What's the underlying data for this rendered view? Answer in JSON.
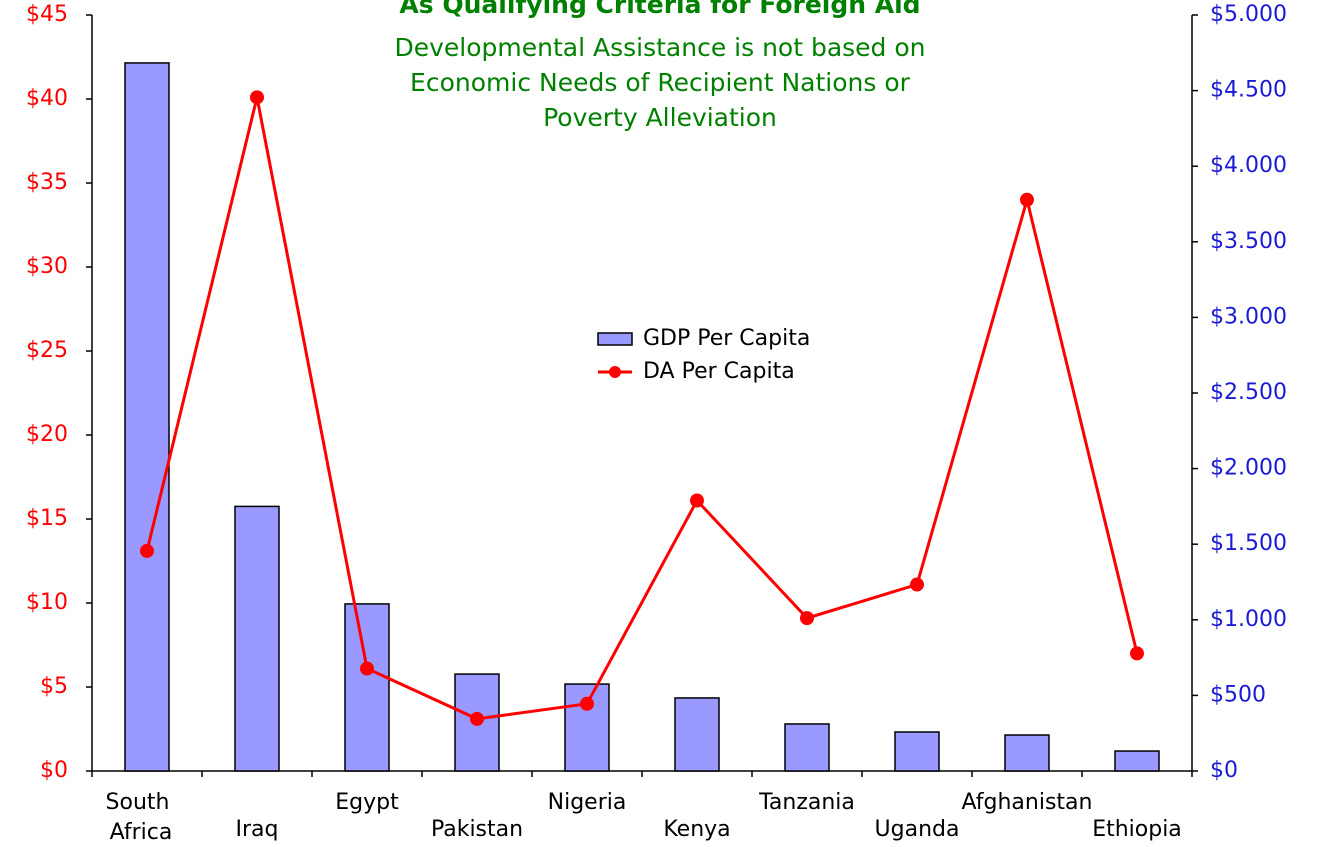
{
  "chart_data": {
    "type": "bar-line",
    "title": "As Qualifying Criteria for Foreign Aid",
    "subtitle": [
      "Developmental Assistance is not based on",
      "Economic Needs of Recipient Nations or",
      "Poverty Alleviation"
    ],
    "categories": [
      "South Africa",
      "Iraq",
      "Egypt",
      "Pakistan",
      "Nigeria",
      "Kenya",
      "Tanzania",
      "Uganda",
      "Afghanistan",
      "Ethiopia"
    ],
    "series": [
      {
        "name": "GDP Per Capita",
        "type": "bar",
        "axis": "y2",
        "color": "#9999ff",
        "values": [
          4683,
          1750,
          1105,
          641,
          575,
          483,
          311,
          258,
          238,
          132
        ]
      },
      {
        "name": "DA Per Capita",
        "type": "line",
        "axis": "y",
        "color": "#ff0000",
        "values": [
          13.1,
          40.1,
          6.1,
          3.1,
          4.0,
          16.1,
          9.1,
          11.1,
          34.0,
          7.0
        ]
      }
    ],
    "ylim": [
      0,
      45
    ],
    "yticks": [
      {
        "value": 0,
        "label": "$0"
      },
      {
        "value": 5,
        "label": "$5"
      },
      {
        "value": 10,
        "label": "$10"
      },
      {
        "value": 15,
        "label": "$15"
      },
      {
        "value": 20,
        "label": "$20"
      },
      {
        "value": 25,
        "label": "$25"
      },
      {
        "value": 30,
        "label": "$30"
      },
      {
        "value": 35,
        "label": "$35"
      },
      {
        "value": 40,
        "label": "$40"
      },
      {
        "value": 45,
        "label": "$45"
      }
    ],
    "y2lim": [
      0,
      5000
    ],
    "y2ticks": [
      {
        "value": 0,
        "label": "$0"
      },
      {
        "value": 500,
        "label": "$500"
      },
      {
        "value": 1000,
        "label": "$1.000"
      },
      {
        "value": 1500,
        "label": "$1.500"
      },
      {
        "value": 2000,
        "label": "$2.000"
      },
      {
        "value": 2500,
        "label": "$2.500"
      },
      {
        "value": 3000,
        "label": "$3.000"
      },
      {
        "value": 3500,
        "label": "$3.500"
      },
      {
        "value": 4000,
        "label": "$4.000"
      },
      {
        "value": 4500,
        "label": "$4.500"
      },
      {
        "value": 5000,
        "label": "$5.000"
      }
    ],
    "legend": "center"
  }
}
